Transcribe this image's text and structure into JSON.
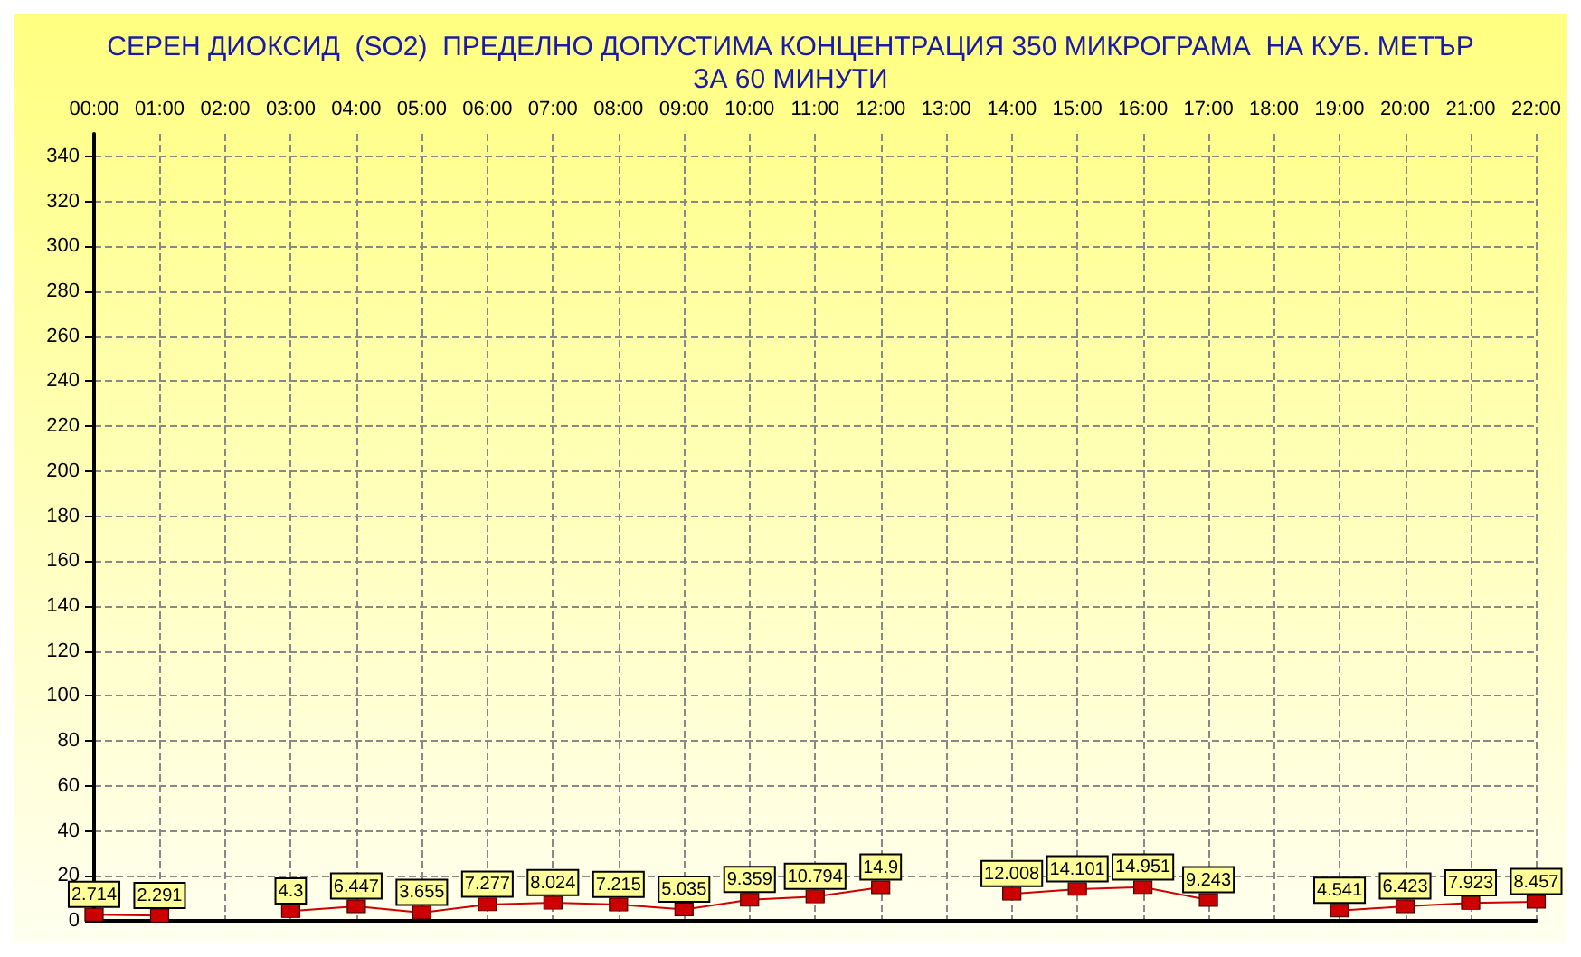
{
  "chart_data": {
    "type": "line",
    "title": "СЕРЕН ДИОКСИД  (SO2)  ПРЕДЕЛНО ДОПУСТИМА КОНЦЕНТРАЦИЯ 350 МИКРОГРАМА  НА КУБ. МЕТЪР\nЗА 60 МИНУТИ",
    "categories": [
      "00:00",
      "01:00",
      "02:00",
      "03:00",
      "04:00",
      "05:00",
      "06:00",
      "07:00",
      "08:00",
      "09:00",
      "10:00",
      "11:00",
      "12:00",
      "13:00",
      "14:00",
      "15:00",
      "16:00",
      "17:00",
      "18:00",
      "19:00",
      "20:00",
      "21:00",
      "22:00"
    ],
    "series": [
      {
        "color": "#cc0000",
        "values": [
          2.714,
          2.291,
          null,
          4.3,
          6.447,
          3.655,
          7.277,
          8.024,
          7.215,
          5.035,
          9.359,
          10.794,
          14.9,
          null,
          12.008,
          14.101,
          14.951,
          9.243,
          null,
          4.541,
          6.423,
          7.923,
          8.457
        ]
      }
    ],
    "ylim": [
      0,
      350
    ],
    "yticks": [
      0,
      20,
      40,
      60,
      80,
      100,
      120,
      140,
      160,
      180,
      200,
      220,
      240,
      260,
      280,
      300,
      320,
      340
    ],
    "grid": true,
    "data_labels": true,
    "marker": "square",
    "line_style": "solid"
  }
}
